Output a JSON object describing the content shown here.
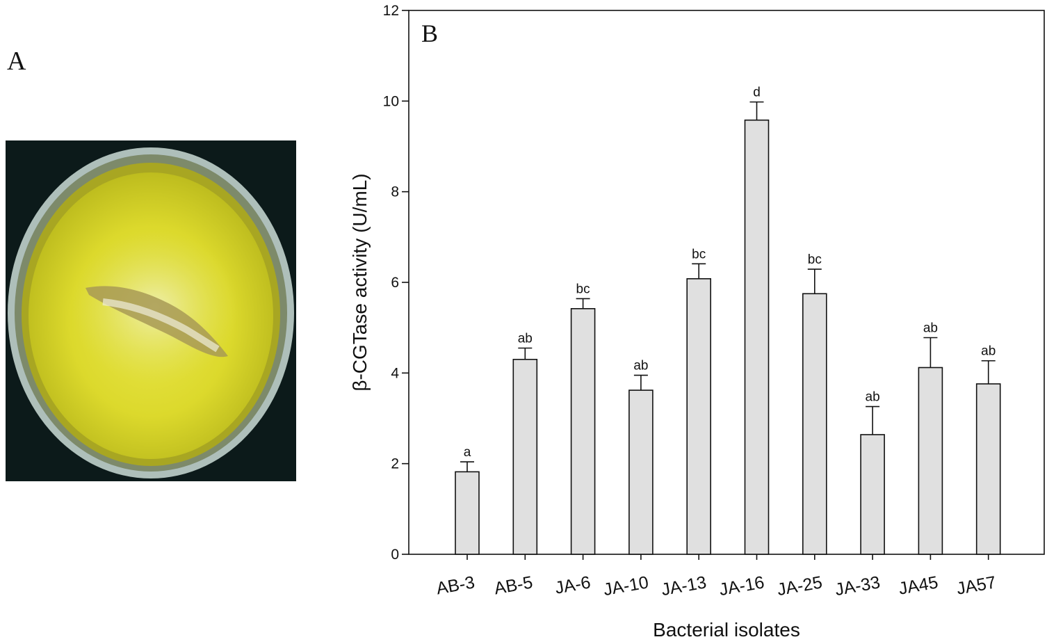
{
  "panel_a": {
    "label": "A",
    "image": "yellow-agar-plate-photo",
    "colors": {
      "background": "#0c1a1a",
      "rim": "#b8c9c2",
      "agar": "#d8d62a",
      "halo": "#e6e69a",
      "colony": "#a89a55"
    }
  },
  "chart_data": {
    "type": "bar",
    "panel_label": "B",
    "title": "",
    "xlabel": "Bacterial isolates",
    "ylabel": "β-CGTase activity (U/mL)",
    "ylim": [
      0,
      12
    ],
    "yticks": [
      "0",
      "2",
      "4",
      "6",
      "8",
      "10",
      "12"
    ],
    "categories": [
      "AB-3",
      "AB-5",
      "JA-6",
      "JA-10",
      "JA-13",
      "JA-16",
      "JA-25",
      "JA-33",
      "JA45",
      "JA57"
    ],
    "values": [
      1.82,
      4.3,
      5.42,
      3.62,
      6.08,
      9.58,
      5.75,
      2.64,
      4.12,
      3.76
    ],
    "errors": [
      0.22,
      0.25,
      0.22,
      0.33,
      0.33,
      0.4,
      0.54,
      0.62,
      0.66,
      0.51
    ],
    "significance": [
      "a",
      "ab",
      "bc",
      "ab",
      "bc",
      "d",
      "bc",
      "ab",
      "ab",
      "ab"
    ],
    "grid": false,
    "colors": {
      "bar_fill": "#e0e0e0",
      "bar_stroke": "#111111",
      "axis": "#111111"
    }
  }
}
